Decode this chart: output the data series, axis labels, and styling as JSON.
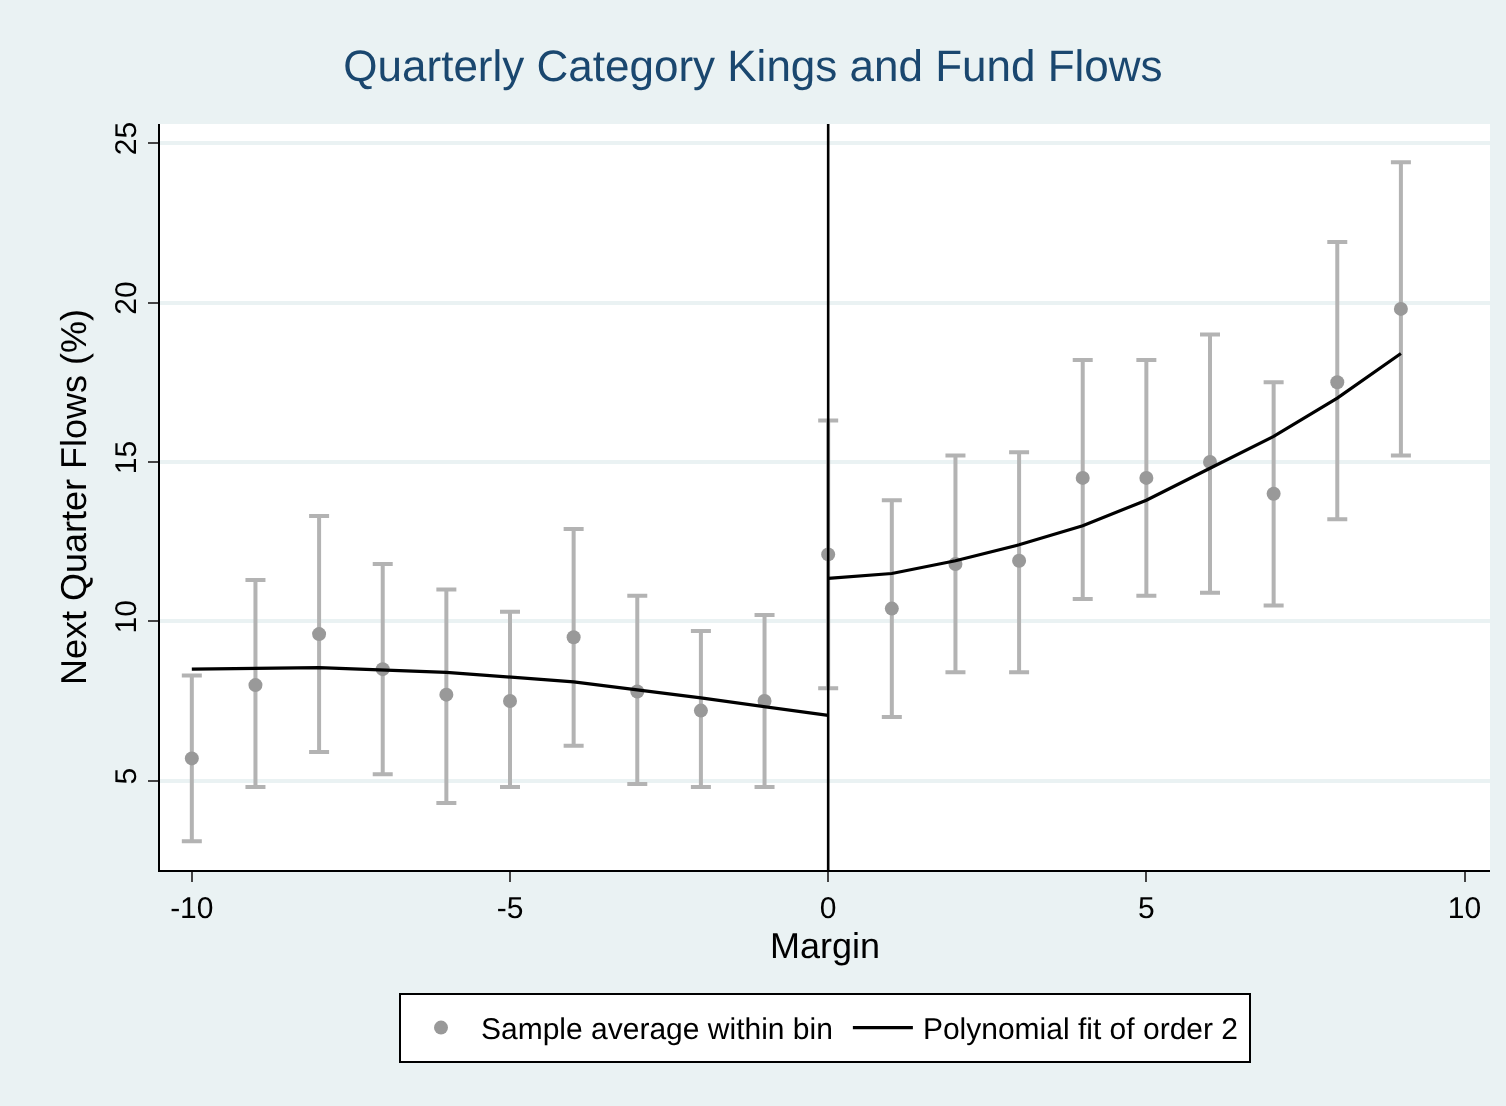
{
  "chart_data": {
    "type": "scatter",
    "title": "Quarterly Category Kings and Fund Flows",
    "xlabel": "Margin",
    "ylabel": "Next Quarter Flows (%)",
    "xlim": [
      -10.5,
      10.4
    ],
    "xticks": [
      -10,
      -5,
      0,
      5,
      10
    ],
    "ylim": [
      2.2,
      25.6
    ],
    "yticks": [
      5,
      10,
      15,
      20,
      25
    ],
    "grid": "y",
    "legend": "bottom",
    "marker": "circle",
    "ref_lines": [
      {
        "axis": "x",
        "value": 0,
        "color": "#000000"
      }
    ],
    "series": [
      {
        "name": "Sample average within bin",
        "color": "#999999",
        "x": [
          -10,
          -9,
          -8,
          -7,
          -6,
          -5,
          -4,
          -3,
          -2,
          -1,
          0,
          1,
          2,
          3,
          4,
          5,
          6,
          7,
          8,
          9
        ],
        "values": [
          5.7,
          8.0,
          9.6,
          8.5,
          7.7,
          7.5,
          9.5,
          7.8,
          7.2,
          7.5,
          12.1,
          10.4,
          11.8,
          11.9,
          14.5,
          14.5,
          15.0,
          14.0,
          17.5,
          19.8
        ],
        "errors": [
          [
            3.1,
            8.3
          ],
          [
            4.8,
            11.3
          ],
          [
            5.9,
            13.3
          ],
          [
            5.2,
            11.8
          ],
          [
            4.3,
            11.0
          ],
          [
            4.8,
            10.3
          ],
          [
            6.1,
            12.9
          ],
          [
            4.9,
            10.8
          ],
          [
            4.8,
            9.7
          ],
          [
            4.8,
            10.2
          ],
          [
            7.9,
            16.3
          ],
          [
            7.0,
            13.8
          ],
          [
            8.4,
            15.2
          ],
          [
            8.4,
            15.3
          ],
          [
            10.7,
            18.2
          ],
          [
            10.8,
            18.2
          ],
          [
            10.9,
            19.0
          ],
          [
            10.5,
            17.5
          ],
          [
            13.2,
            21.9
          ],
          [
            15.2,
            24.4
          ]
        ]
      },
      {
        "name": "Polynomial fit of order 2",
        "type": "line",
        "color": "#000000",
        "marker": "none",
        "line_style": "solid",
        "x": [
          -10,
          -8,
          -6,
          -4,
          -2,
          0
        ],
        "values": [
          8.5,
          8.55,
          8.4,
          8.1,
          7.6,
          7.05
        ]
      },
      {
        "type": "line",
        "color": "#000000",
        "marker": "none",
        "line_style": "solid",
        "x": [
          0,
          1,
          2,
          3,
          4,
          5,
          6,
          7,
          8,
          9
        ],
        "values": [
          11.35,
          11.5,
          11.9,
          12.4,
          13.0,
          13.8,
          14.8,
          15.8,
          17.0,
          18.4
        ]
      }
    ]
  }
}
